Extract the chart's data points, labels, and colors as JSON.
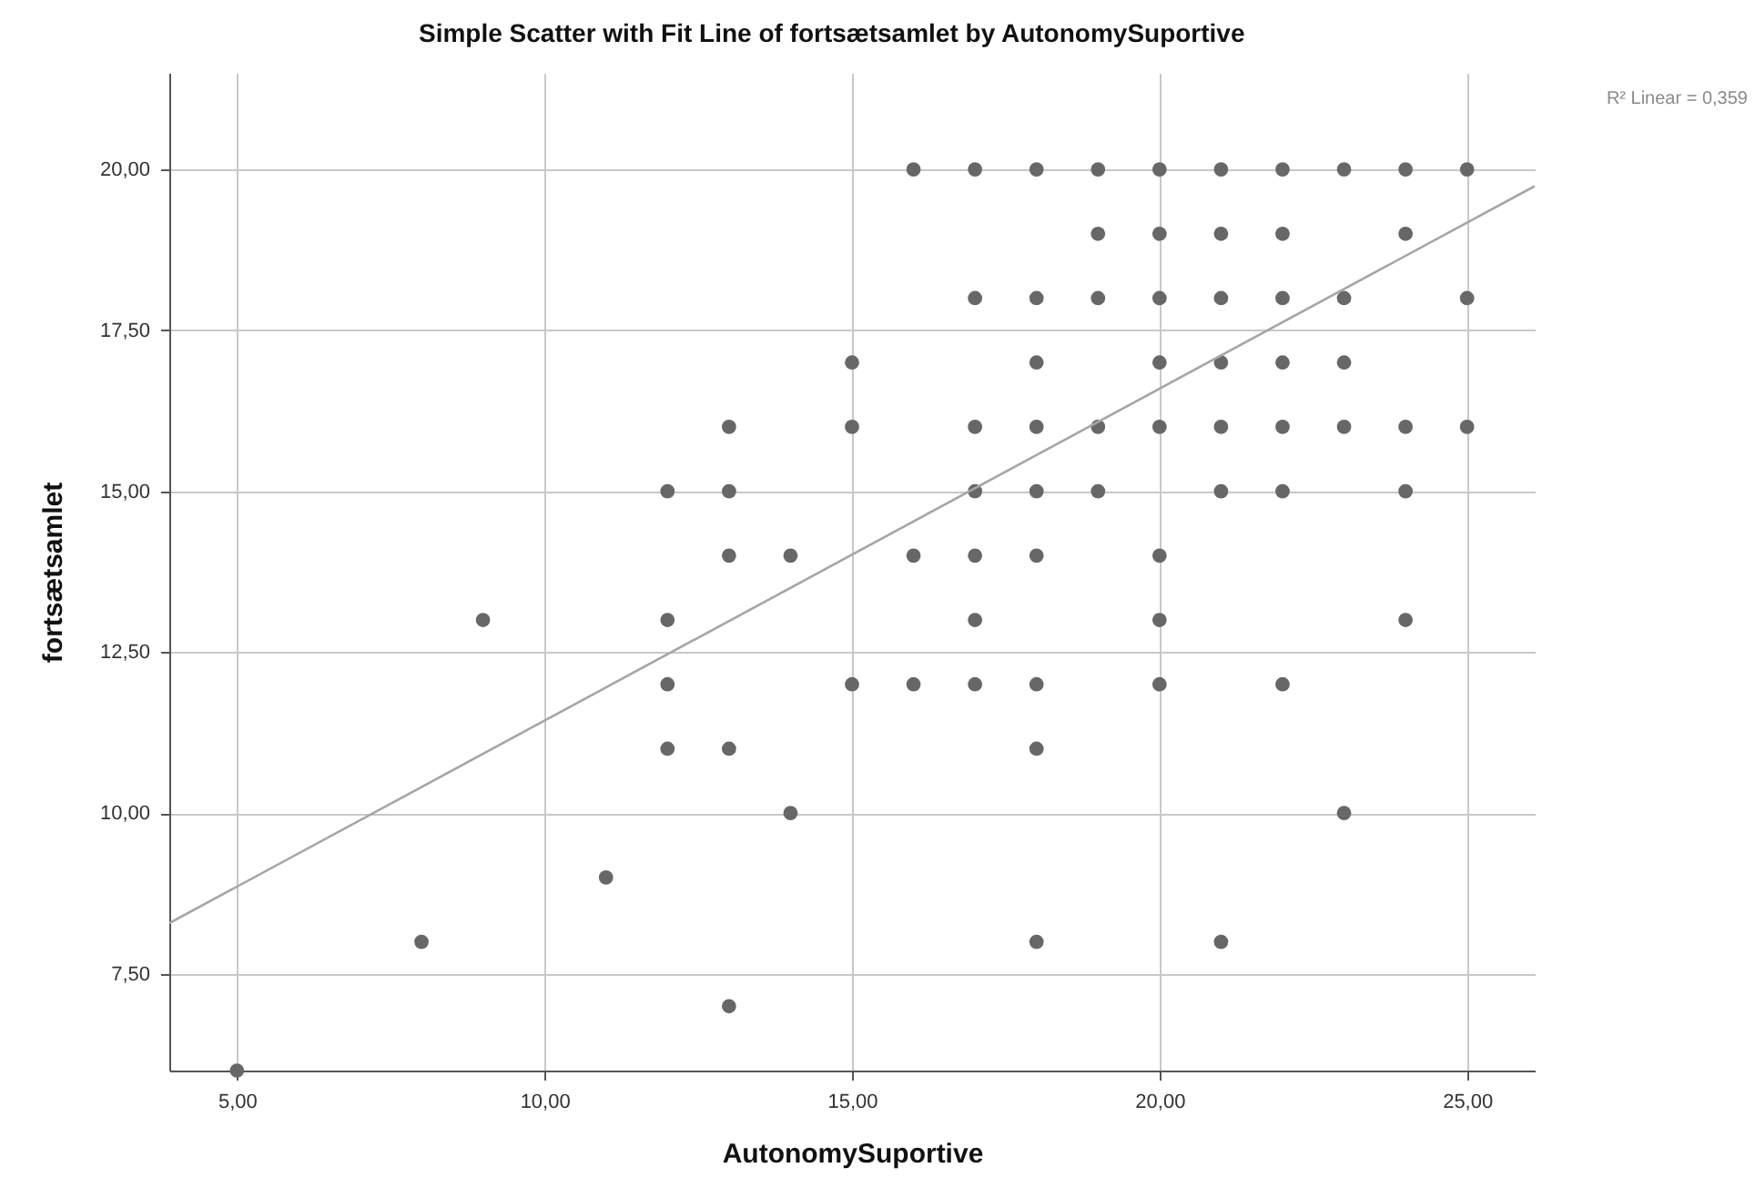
{
  "chart_data": {
    "type": "scatter",
    "title": "Simple Scatter with Fit Line of fortsætsamlet by AutonomySuportive",
    "xlabel": "AutonomySuportive",
    "ylabel": "fortsætsamlet",
    "annotations": [
      "R² Linear = 0,359"
    ],
    "xlim": [
      3.9,
      26.1
    ],
    "ylim": [
      6.0,
      21.5
    ],
    "xticks": [
      {
        "value": 5,
        "label": "5,00"
      },
      {
        "value": 10,
        "label": "10,00"
      },
      {
        "value": 15,
        "label": "15,00"
      },
      {
        "value": 20,
        "label": "20,00"
      },
      {
        "value": 25,
        "label": "25,00"
      }
    ],
    "yticks": [
      {
        "value": 7.5,
        "label": "7,50"
      },
      {
        "value": 10,
        "label": "10,00"
      },
      {
        "value": 12.5,
        "label": "12,50"
      },
      {
        "value": 15,
        "label": "15,00"
      },
      {
        "value": 17.5,
        "label": "17,50"
      },
      {
        "value": 20,
        "label": "20,00"
      }
    ],
    "grid": true,
    "marker": "circle",
    "series": [
      {
        "color": "#676767",
        "x": [
          5,
          8,
          9,
          11,
          12,
          12,
          12,
          12,
          13,
          13,
          13,
          13,
          13,
          14,
          14,
          15,
          15,
          15,
          16,
          16,
          16,
          17,
          17,
          17,
          17,
          17,
          17,
          17,
          18,
          18,
          18,
          18,
          18,
          18,
          18,
          18,
          18,
          19,
          19,
          19,
          19,
          19,
          20,
          20,
          20,
          20,
          20,
          20,
          20,
          20,
          21,
          21,
          21,
          21,
          21,
          21,
          21,
          22,
          22,
          22,
          22,
          22,
          22,
          22,
          23,
          23,
          23,
          23,
          23,
          24,
          24,
          24,
          24,
          24,
          25,
          25,
          25
        ],
        "values": [
          6,
          8,
          13,
          9,
          15,
          13,
          12,
          11,
          16,
          15,
          14,
          11,
          7,
          14,
          10,
          17,
          16,
          12,
          20,
          14,
          12,
          20,
          18,
          16,
          15,
          14,
          13,
          12,
          20,
          18,
          17,
          16,
          15,
          14,
          12,
          11,
          8,
          20,
          19,
          18,
          16,
          15,
          20,
          19,
          18,
          17,
          16,
          14,
          13,
          12,
          20,
          19,
          18,
          17,
          16,
          15,
          8,
          20,
          19,
          18,
          17,
          16,
          15,
          12,
          20,
          18,
          17,
          16,
          10,
          20,
          19,
          16,
          15,
          13,
          20,
          18,
          16
        ]
      },
      {
        "type": "line",
        "marker": "none",
        "color": "#a6a6a6",
        "x": [
          3.9,
          26.1
        ],
        "values": [
          8.29,
          19.74
        ]
      }
    ]
  }
}
